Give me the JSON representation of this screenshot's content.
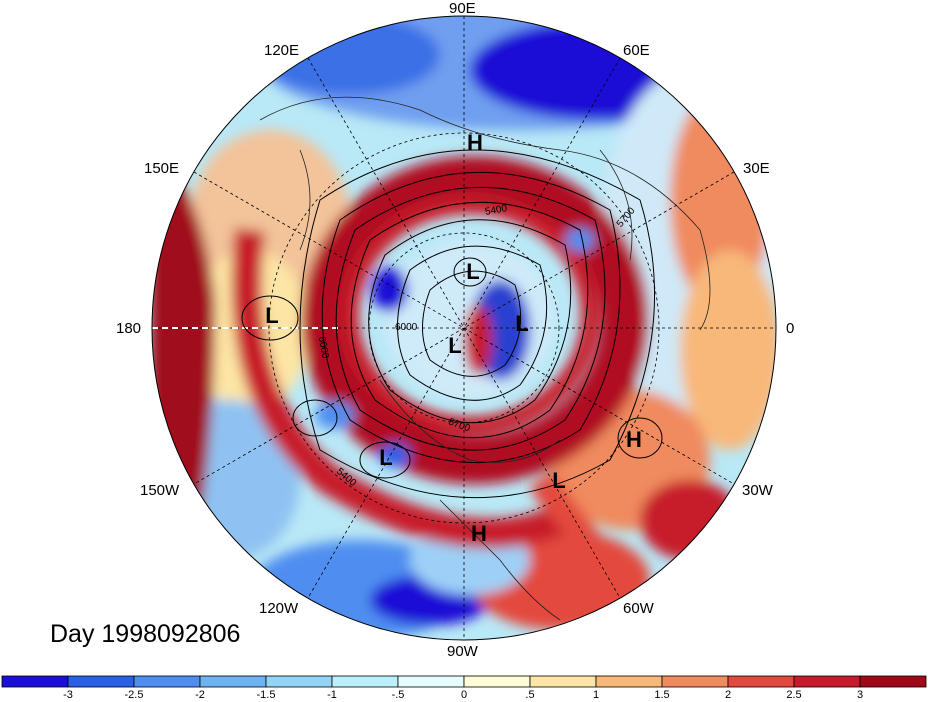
{
  "title": "Day 1998092806",
  "lon_labels": {
    "e90": "90E",
    "e120": "120E",
    "e60": "60E",
    "e150": "150E",
    "e30": "30E",
    "w180": "180",
    "zero": "0",
    "w150": "150W",
    "w30": "30W",
    "w120": "120W",
    "w60": "60W",
    "w90": "90W"
  },
  "pressure_centers": [
    {
      "label": "H"
    },
    {
      "label": "L"
    },
    {
      "label": "L"
    },
    {
      "label": "L"
    },
    {
      "label": "L"
    },
    {
      "label": "H"
    },
    {
      "label": "L"
    },
    {
      "label": "L"
    },
    {
      "label": "H"
    }
  ],
  "contour_labels": [
    "5400",
    "5700",
    "6000",
    "6000",
    "5700",
    "5400"
  ],
  "colorbar": {
    "ticks": [
      "-3",
      "-2.5",
      "-2",
      "-1.5",
      "-1",
      "-.5",
      "0",
      ".5",
      "1",
      "1.5",
      "2",
      "2.5",
      "3"
    ],
    "colors": [
      "#1a0fd6",
      "#2a5fe8",
      "#4f8ef0",
      "#6fb2f2",
      "#92d3f6",
      "#baf0fb",
      "#e6fdfe",
      "#fefbd6",
      "#fde5a5",
      "#f8b87a",
      "#f08a5f",
      "#e3483e",
      "#c71a2c",
      "#a0081a"
    ]
  },
  "colors": {
    "strong_positive": "#a0081a",
    "positive": "#e3483e",
    "neutral": "#e6fdfe",
    "negative": "#4f8ef0",
    "strong_negative": "#1a0fd6"
  }
}
